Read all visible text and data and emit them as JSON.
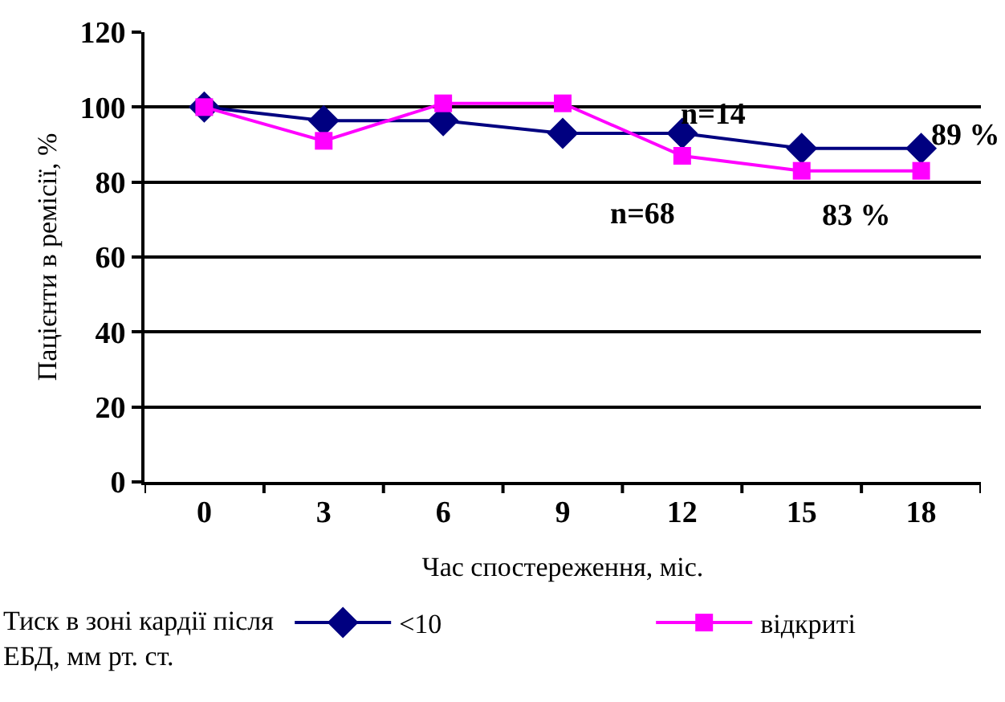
{
  "chart_data": {
    "type": "line",
    "xlabel": "Час спостереження, міс.",
    "ylabel": "Пацієнти в ремісії, %",
    "categories": [
      "0",
      "3",
      "6",
      "9",
      "12",
      "15",
      "18"
    ],
    "series": [
      {
        "name": "<10",
        "color": "#000080",
        "marker": "diamond",
        "values": [
          100,
          96.4,
          96.4,
          93,
          93,
          89,
          89
        ]
      },
      {
        "name": "відкриті",
        "color": "#ff00ff",
        "marker": "square",
        "values": [
          100,
          91,
          101,
          101,
          87,
          83,
          83
        ]
      }
    ],
    "ylim": [
      0,
      120
    ],
    "yticks": [
      0,
      20,
      40,
      60,
      80,
      100,
      120
    ],
    "grid": "y",
    "legend": "bottom",
    "legend_title": "Тиск в зоні кардії після ЕБД, мм рт. ст.",
    "annotations": [
      {
        "text": "n=14",
        "x": "12",
        "y": 93
      },
      {
        "text": "89 %",
        "x": "18",
        "y": 89
      },
      {
        "text": "n=68",
        "x": "12",
        "y": 87
      },
      {
        "text": "83 %",
        "x": "18",
        "y": 83
      }
    ]
  }
}
